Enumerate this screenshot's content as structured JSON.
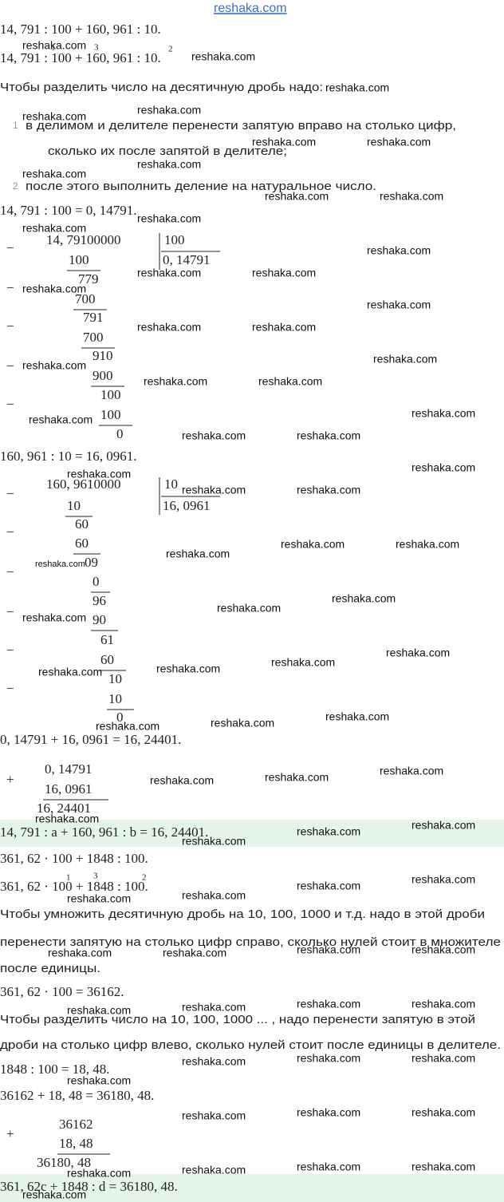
{
  "header": {
    "site": "reshaka.com"
  },
  "content": [
    "14, 791 : 100 + 160, 961 : 10.",
    "14, 791 : 100 + 160, 961 : 10.",
    "1",
    "3",
    "2",
    "Чтобы разделить число на десятичную дробь надо:",
    "1",
    "в делимом и делителе перенести запятую вправо на столько цифр,",
    "сколько их после запятой в делителе;",
    "2",
    "после этого выполнить деление на натуральное число.",
    "14, 791 : 100 = 0, 14791.",
    "−",
    "14, 79100000",
    "100",
    "0, 14791",
    "100",
    "−",
    "779",
    "700",
    "−",
    "791",
    "700",
    "−",
    "910",
    "900",
    "−",
    "100",
    "100",
    "0",
    "160, 961 : 10 = 16, 0961.",
    "−",
    "160, 9610000",
    "10",
    "16, 0961",
    "10",
    "−",
    "60",
    "60",
    "−",
    "09",
    "0",
    "−",
    "96",
    "90",
    "−",
    "61",
    "60",
    "−",
    "10",
    "10",
    "0",
    "0, 14791 + 16, 0961 = 16, 24401.",
    "+",
    "0, 14791",
    "16, 0961",
    "16, 24401",
    "14, 791 : a + 160, 961 : b = 16, 24401.",
    "361, 62 · 100 + 1848 : 100.",
    "361, 62 · 100 + 1848 : 100.",
    "1",
    "3",
    "2",
    "Чтобы умножить десятичную дробь на 10, 100, 1000 и т.д. надо в этой дроби",
    "перенести запятую на столько цифр справо, сколько нулей стоит в множителе",
    "после единицы.",
    "361, 62 · 100 = 36162.",
    "Чтобы разделить число на 10, 100, 1000 ... , надо перенести запятую в этой",
    "дроби на столько цифр влево, сколько нулей стоит после единицы в делителе.",
    "1848 : 100 = 18, 48.",
    "36162 + 18, 48 = 36180, 48.",
    "+",
    "36162",
    "18, 48",
    "36180, 48",
    "361, 62c + 1848 : d = 36180, 48."
  ],
  "watermarks": [
    "reshaka.com",
    "reshaka.com",
    "reshaka.com",
    "reshaka.com",
    "reshaka.com",
    "reshaka.com",
    "reshaka.com",
    "reshaka.com",
    "reshaka.com",
    "reshaka.com",
    "reshaka.com",
    "reshaka.com",
    "reshaka.com",
    "reshaka.com",
    "reshaka.com",
    "reshaka.com",
    "reshaka.com",
    "reshaka.com",
    "reshaka.com",
    "reshaka.com",
    "reshaka.com",
    "reshaka.com",
    "reshaka.com",
    "reshaka.com",
    "reshaka.com",
    "reshaka.com",
    "reshaka.com",
    "reshaka.com",
    "reshaka.com",
    "reshaka.com",
    "reshaka.com",
    "reshaka.com",
    "reshaka.com",
    "reshaka.com",
    "reshaka.com",
    "reshaka.com",
    "reshaka.com",
    "reshaka.com",
    "reshaka.com",
    "reshaka.com",
    "reshaka.com",
    "reshaka.com",
    "reshaka.com",
    "reshaka.com",
    "reshaka.com",
    "reshaka.com",
    "reshaka.com",
    "reshaka.com",
    "reshaka.com",
    "reshaka.com",
    "reshaka.com",
    "reshaka.com",
    "reshaka.com",
    "reshaka.com",
    "reshaka.com",
    "reshaka.com",
    "reshaka.com",
    "reshaka.com",
    "reshaka.com",
    "reshaka.com",
    "reshaka.com",
    "reshaka.com",
    "reshaka.com",
    "reshaka.com",
    "reshaka.com",
    "reshaka.com",
    "reshaka.com",
    "reshaka.com",
    "reshaka.com",
    "reshaka.com",
    "reshaka.com",
    "reshaka.com",
    "reshaka.com",
    "reshaka.com",
    "reshaka.com",
    "reshaka.com",
    "reshaka.com"
  ]
}
